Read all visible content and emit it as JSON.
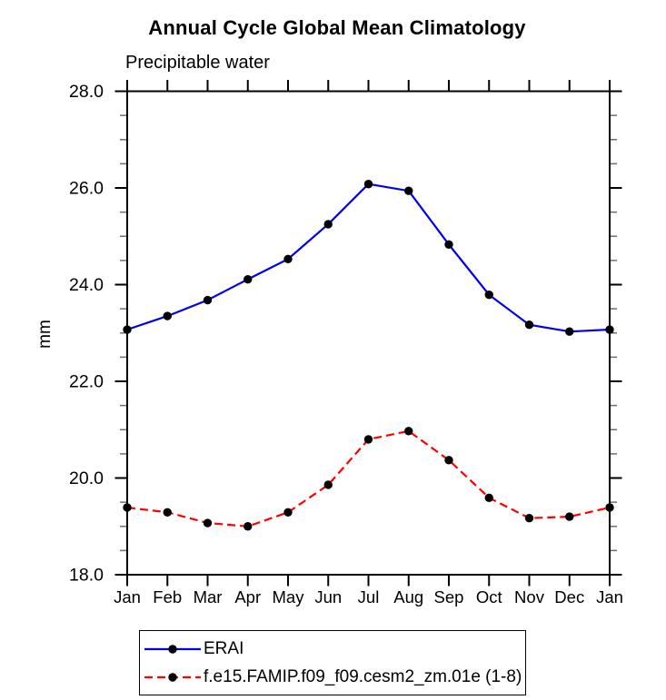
{
  "chart_data": {
    "type": "line",
    "title": "Annual Cycle Global Mean Climatology",
    "subtitle": "Precipitable water",
    "ylabel": "mm",
    "xlabel": "",
    "categories": [
      "Jan",
      "Feb",
      "Mar",
      "Apr",
      "May",
      "Jun",
      "Jul",
      "Aug",
      "Sep",
      "Oct",
      "Nov",
      "Dec",
      "Jan"
    ],
    "ylim": [
      18.0,
      28.0
    ],
    "ytick_major": [
      18,
      20,
      22,
      24,
      26,
      28
    ],
    "ytick_labels": [
      "18.0",
      "20.0",
      "22.0",
      "24.0",
      "26.0",
      "28.0"
    ],
    "ytick_minor_step": 0.5,
    "grid": false,
    "legend_position": "bottom",
    "axis_color": "#000000",
    "minor_tick_color": "#6e6e6e",
    "series": [
      {
        "name": "ERAI",
        "color": "#0000ee",
        "style": "solid",
        "marker": "circle",
        "marker_color": "#000000",
        "values": [
          23.07,
          23.35,
          23.68,
          24.11,
          24.53,
          25.25,
          26.08,
          25.94,
          24.83,
          23.79,
          23.17,
          23.03,
          23.07
        ]
      },
      {
        "name": "f.e15.FAMIP.f09_f09.cesm2_zm.01e (1-8)",
        "color": "#ff0000",
        "style": "dashed",
        "marker": "circle",
        "marker_color": "#000000",
        "values": [
          19.39,
          19.29,
          19.07,
          19.0,
          19.29,
          19.86,
          20.8,
          20.97,
          20.37,
          19.59,
          19.17,
          19.2,
          19.39
        ]
      }
    ]
  }
}
